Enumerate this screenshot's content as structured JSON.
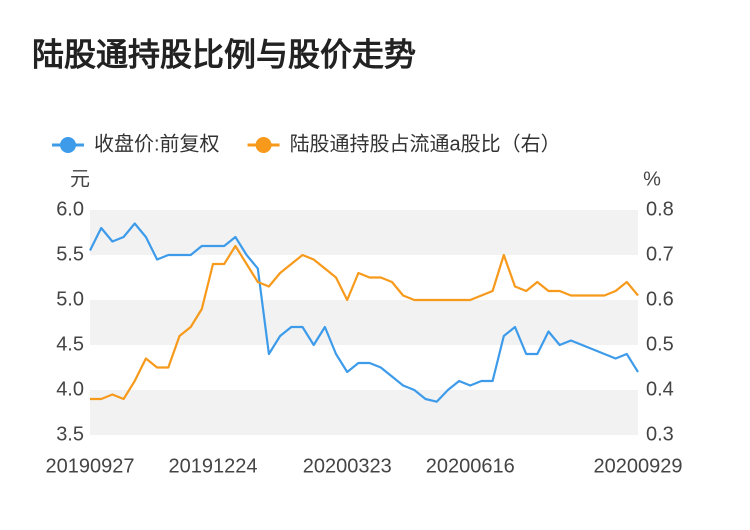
{
  "chart_data": {
    "type": "line",
    "title": "陆股通持股比例与股价走势",
    "y_unit": "元",
    "y2_unit": "%",
    "categories": [
      "20190927",
      null,
      null,
      null,
      null,
      null,
      null,
      null,
      null,
      null,
      null,
      "20191224",
      null,
      null,
      null,
      null,
      null,
      null,
      null,
      null,
      null,
      null,
      null,
      "20200323",
      null,
      null,
      null,
      null,
      null,
      null,
      null,
      null,
      null,
      null,
      "20200616",
      null,
      null,
      null,
      null,
      null,
      null,
      null,
      null,
      null,
      null,
      null,
      null,
      null,
      null,
      "20200929"
    ],
    "ylim": [
      3.5,
      6.0
    ],
    "yticks": [
      {
        "value": 3.5,
        "label": "3.5"
      },
      {
        "value": 4,
        "label": "4.0"
      },
      {
        "value": 4.5,
        "label": "4.5"
      },
      {
        "value": 5,
        "label": "5.0"
      },
      {
        "value": 5.5,
        "label": "5.5"
      },
      {
        "value": 6,
        "label": "6.0"
      }
    ],
    "y2lim": [
      0.3,
      0.8
    ],
    "y2ticks": [
      0.3,
      0.4,
      0.5,
      0.6,
      0.7,
      0.8
    ],
    "grid": "bands",
    "legend": "top-left",
    "series": [
      {
        "name": "收盘价:前复权",
        "color": "#3d9bea",
        "values": [
          5.55,
          5.8,
          5.65,
          5.7,
          5.85,
          5.7,
          5.45,
          5.5,
          5.5,
          5.5,
          5.6,
          5.6,
          5.6,
          5.7,
          5.5,
          5.35,
          4.4,
          4.6,
          4.7,
          4.7,
          4.5,
          4.7,
          4.4,
          4.2,
          4.3,
          4.3,
          4.25,
          4.15,
          4.05,
          4.0,
          3.9,
          3.87,
          4.0,
          4.1,
          4.05,
          4.1,
          4.1,
          4.6,
          4.7,
          4.4,
          4.4,
          4.65,
          4.5,
          4.55,
          4.5,
          4.45,
          4.4,
          4.35,
          4.4,
          4.2
        ]
      },
      {
        "name": "陆股通持股占流通a股比（右）",
        "color": "#f79a1c",
        "axis": "y2",
        "values": [
          0.38,
          0.38,
          0.39,
          0.38,
          0.42,
          0.47,
          0.45,
          0.45,
          0.52,
          0.54,
          0.58,
          0.68,
          0.68,
          0.72,
          0.68,
          0.64,
          0.63,
          0.66,
          0.68,
          0.7,
          0.69,
          0.67,
          0.65,
          0.6,
          0.66,
          0.65,
          0.65,
          0.64,
          0.61,
          0.6,
          0.6,
          0.6,
          0.6,
          0.6,
          0.6,
          0.61,
          0.62,
          0.7,
          0.63,
          0.62,
          0.64,
          0.62,
          0.62,
          0.61,
          0.61,
          0.61,
          0.61,
          0.62,
          0.64,
          0.61
        ]
      }
    ]
  }
}
